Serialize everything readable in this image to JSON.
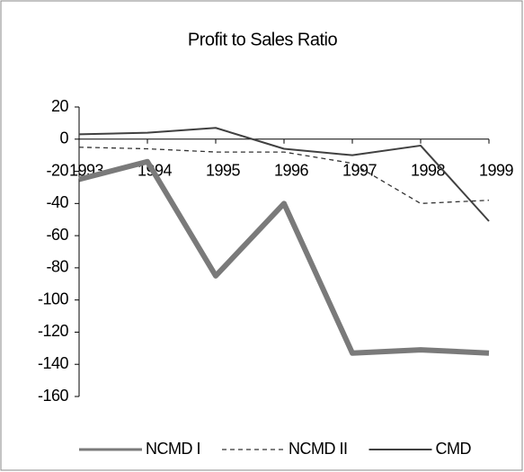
{
  "chart_data": {
    "type": "line",
    "title": "Profit to Sales Ratio",
    "categories": [
      "1993",
      "1994",
      "1995",
      "1996",
      "1997",
      "1998",
      "1999"
    ],
    "series": [
      {
        "name": "NCMD I",
        "color": "#7a7a7a",
        "width": 6,
        "dash": "none",
        "values": [
          -25,
          -14,
          -85,
          -40,
          -133,
          -131,
          -133
        ]
      },
      {
        "name": "NCMD II",
        "color": "#333333",
        "width": 1.3,
        "dash": "5,4",
        "values": [
          -5,
          -6,
          -8,
          -8,
          -15,
          -40,
          -38
        ]
      },
      {
        "name": "CMD",
        "color": "#404040",
        "width": 2,
        "dash": "none",
        "values": [
          3,
          4,
          7,
          -6,
          -10,
          -4,
          -51
        ]
      }
    ],
    "ylim": [
      -160,
      20
    ],
    "yticks": [
      20,
      0,
      -20,
      -40,
      -60,
      -80,
      -100,
      -120,
      -140,
      -160
    ],
    "legend": "bottom"
  }
}
